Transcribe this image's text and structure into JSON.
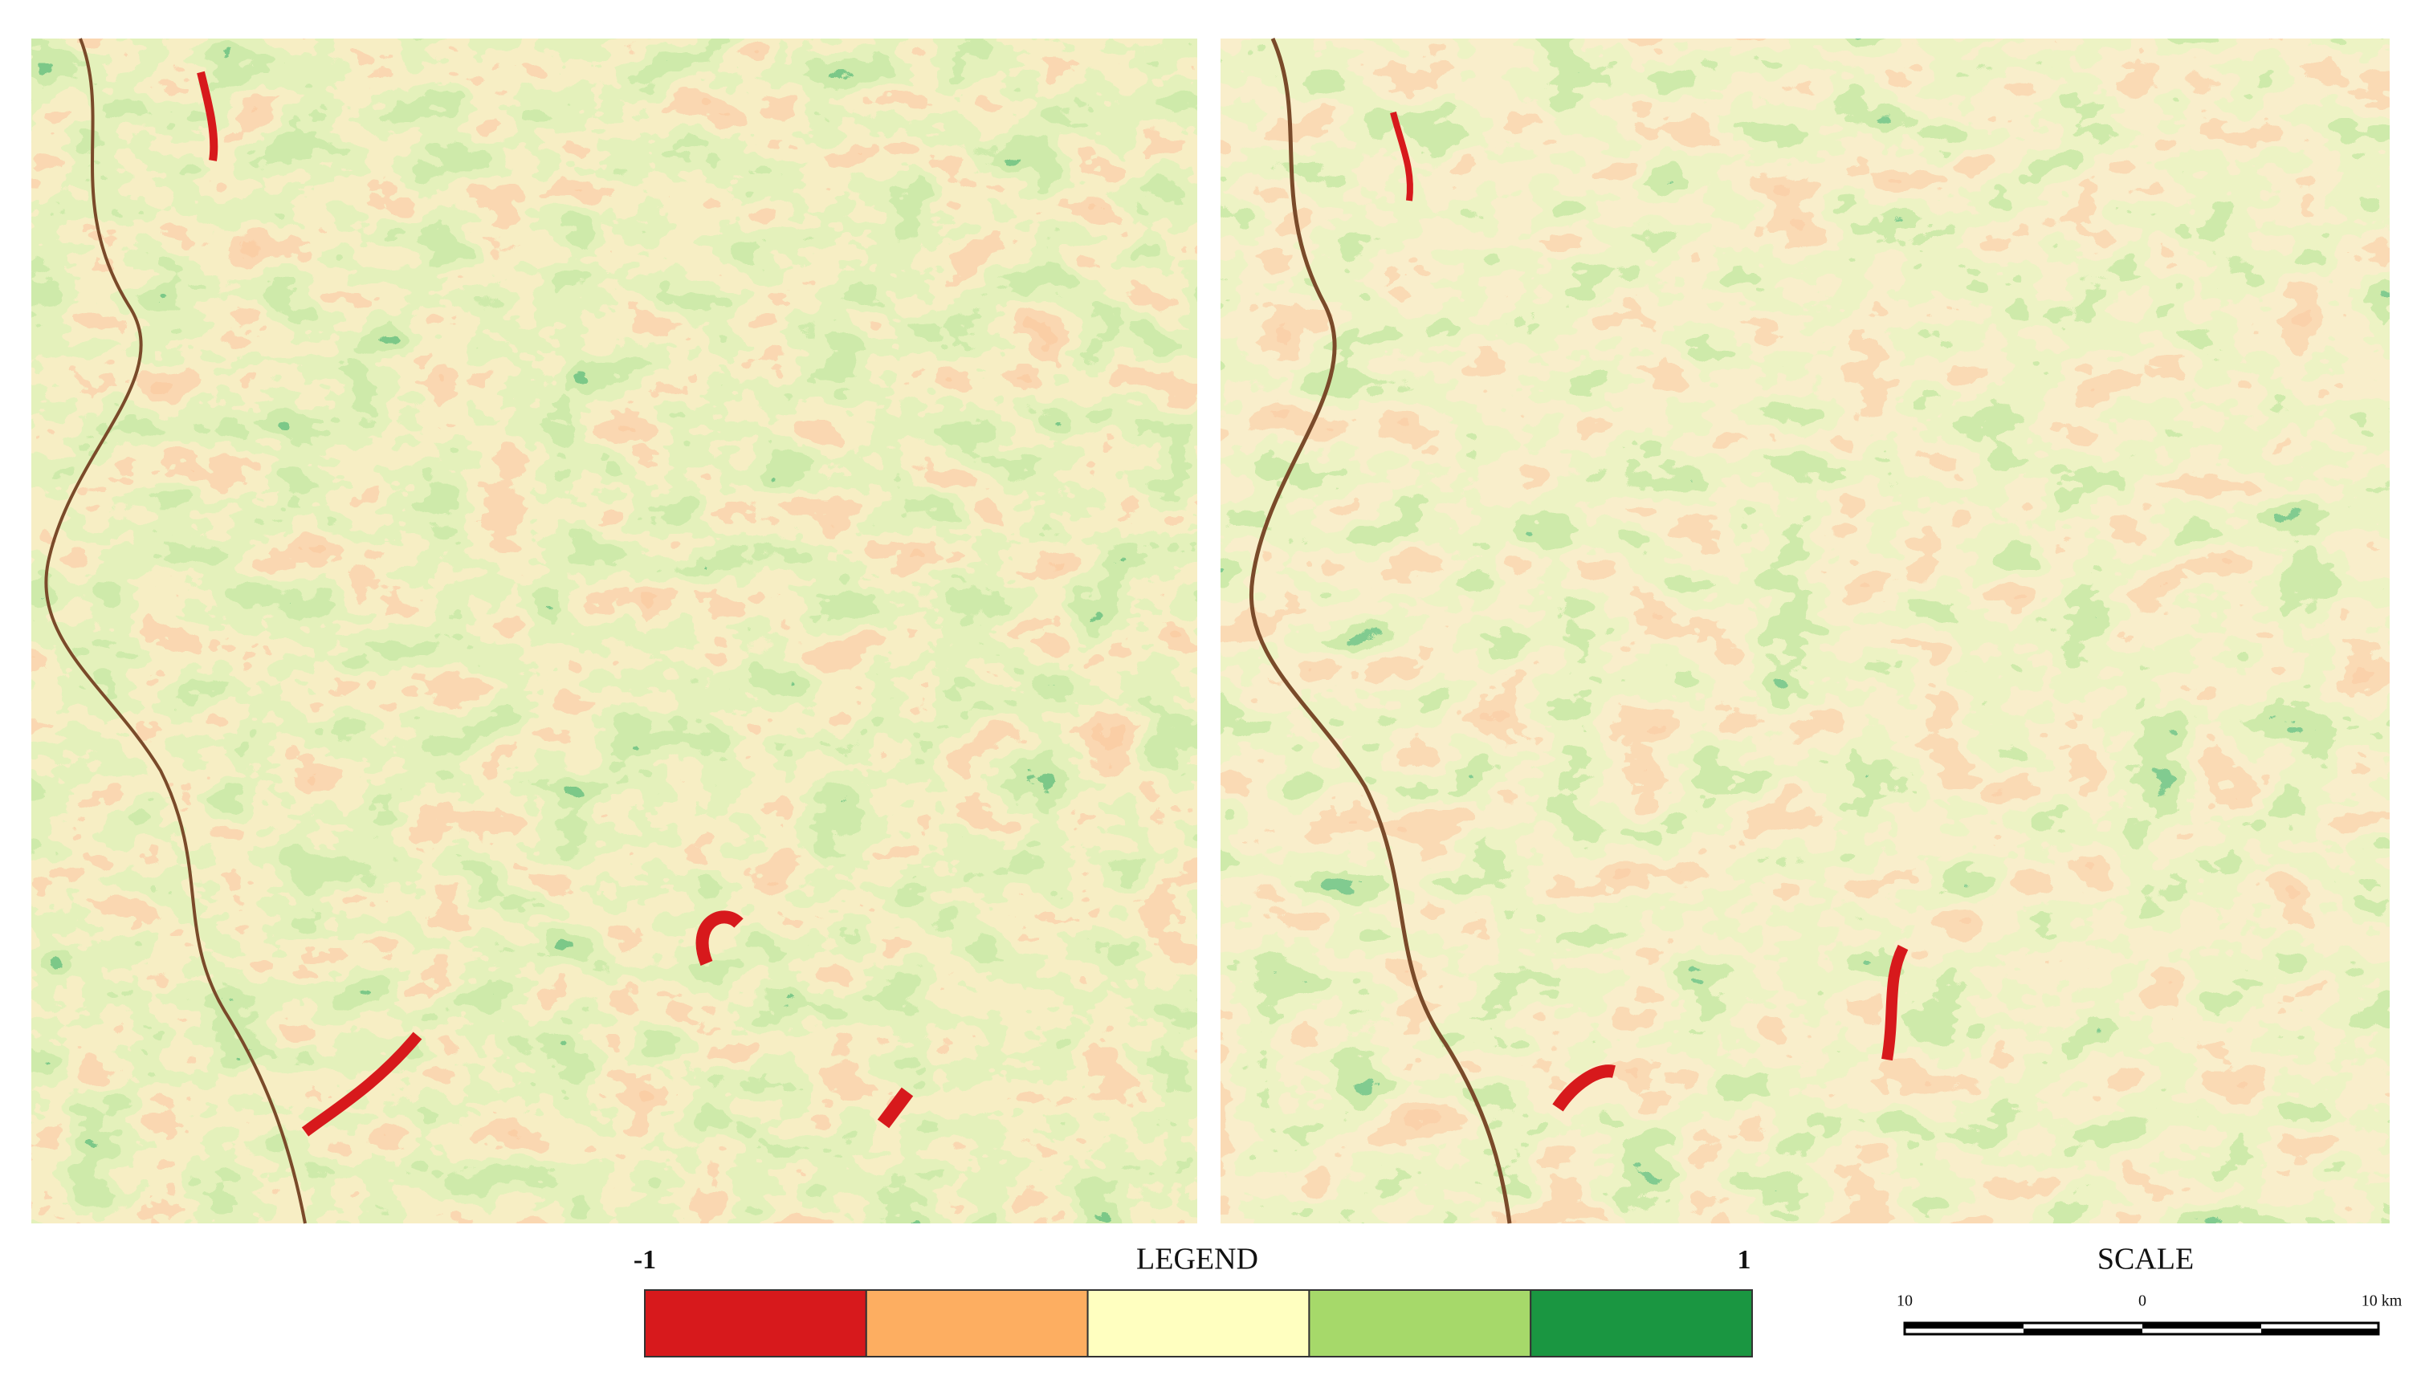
{
  "legend": {
    "title": "LEGEND",
    "min_label": "-1",
    "max_label": "1",
    "colors": [
      "#d7191c",
      "#fdae61",
      "#ffffc0",
      "#a6d96a",
      "#1a9641"
    ]
  },
  "scale": {
    "title": "SCALE",
    "labels": [
      "10",
      "0",
      "10 km"
    ]
  }
}
